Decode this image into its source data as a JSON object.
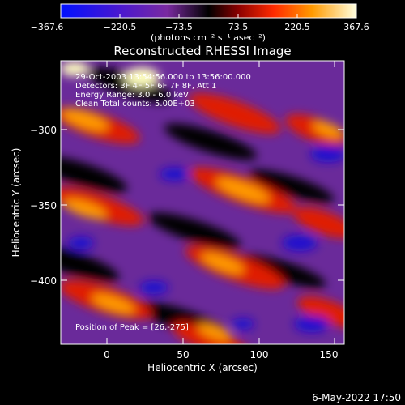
{
  "title": "Reconstructed RHESSI Image",
  "colorbar": {
    "ticks": [
      "−367.6",
      "−220.5",
      "−73.5",
      "73.5",
      "220.5",
      "367.6"
    ],
    "unit_label": "(photons cm⁻² s⁻¹ asec⁻²)"
  },
  "annotations": {
    "time": "29-Oct-2003 13:54:56.000 to 13:56:00.000",
    "detectors": "Detectors: 3F 4F 5F 6F 7F 8F, Att 1",
    "energy": "Energy Range: 3.0 - 6.0 keV",
    "clean": "Clean     Total counts: 5.00E+03",
    "peak": "Position of Peak = [26,-275]"
  },
  "axes": {
    "xlabel": "Heliocentric X (arcsec)",
    "ylabel": "Heliocentric Y (arcsec)",
    "xticks": [
      "0",
      "50",
      "100",
      "150"
    ],
    "yticks": [
      "−300",
      "−350",
      "−400"
    ]
  },
  "footer": "6-May-2022 17:50"
}
